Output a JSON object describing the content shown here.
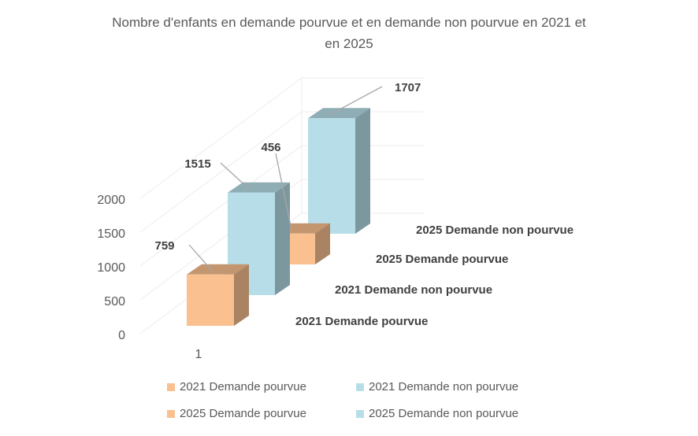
{
  "chart_data": {
    "type": "bar",
    "title_line1": "Nombre d'enfants en demande pourvue et en demande non pourvue en 2021 et",
    "title_line2": "en 2025",
    "categories": [
      "1"
    ],
    "series": [
      {
        "name": "2021 Demande pourvue",
        "values": [
          759
        ],
        "color": "#FAC090",
        "label": "759"
      },
      {
        "name": "2021 Demande non pourvue",
        "values": [
          1515
        ],
        "color": "#B7DEE8",
        "label": "1515"
      },
      {
        "name": "2025 Demande pourvue",
        "values": [
          456
        ],
        "color": "#FAC090",
        "label": "456"
      },
      {
        "name": "2025 Demande non pourvue",
        "values": [
          1707
        ],
        "color": "#B7DEE8",
        "label": "1707"
      }
    ],
    "yticks": [
      "0",
      "500",
      "1000",
      "1500",
      "2000"
    ],
    "ylim": [
      0,
      2000
    ],
    "grid": true,
    "legend_position": "bottom"
  }
}
